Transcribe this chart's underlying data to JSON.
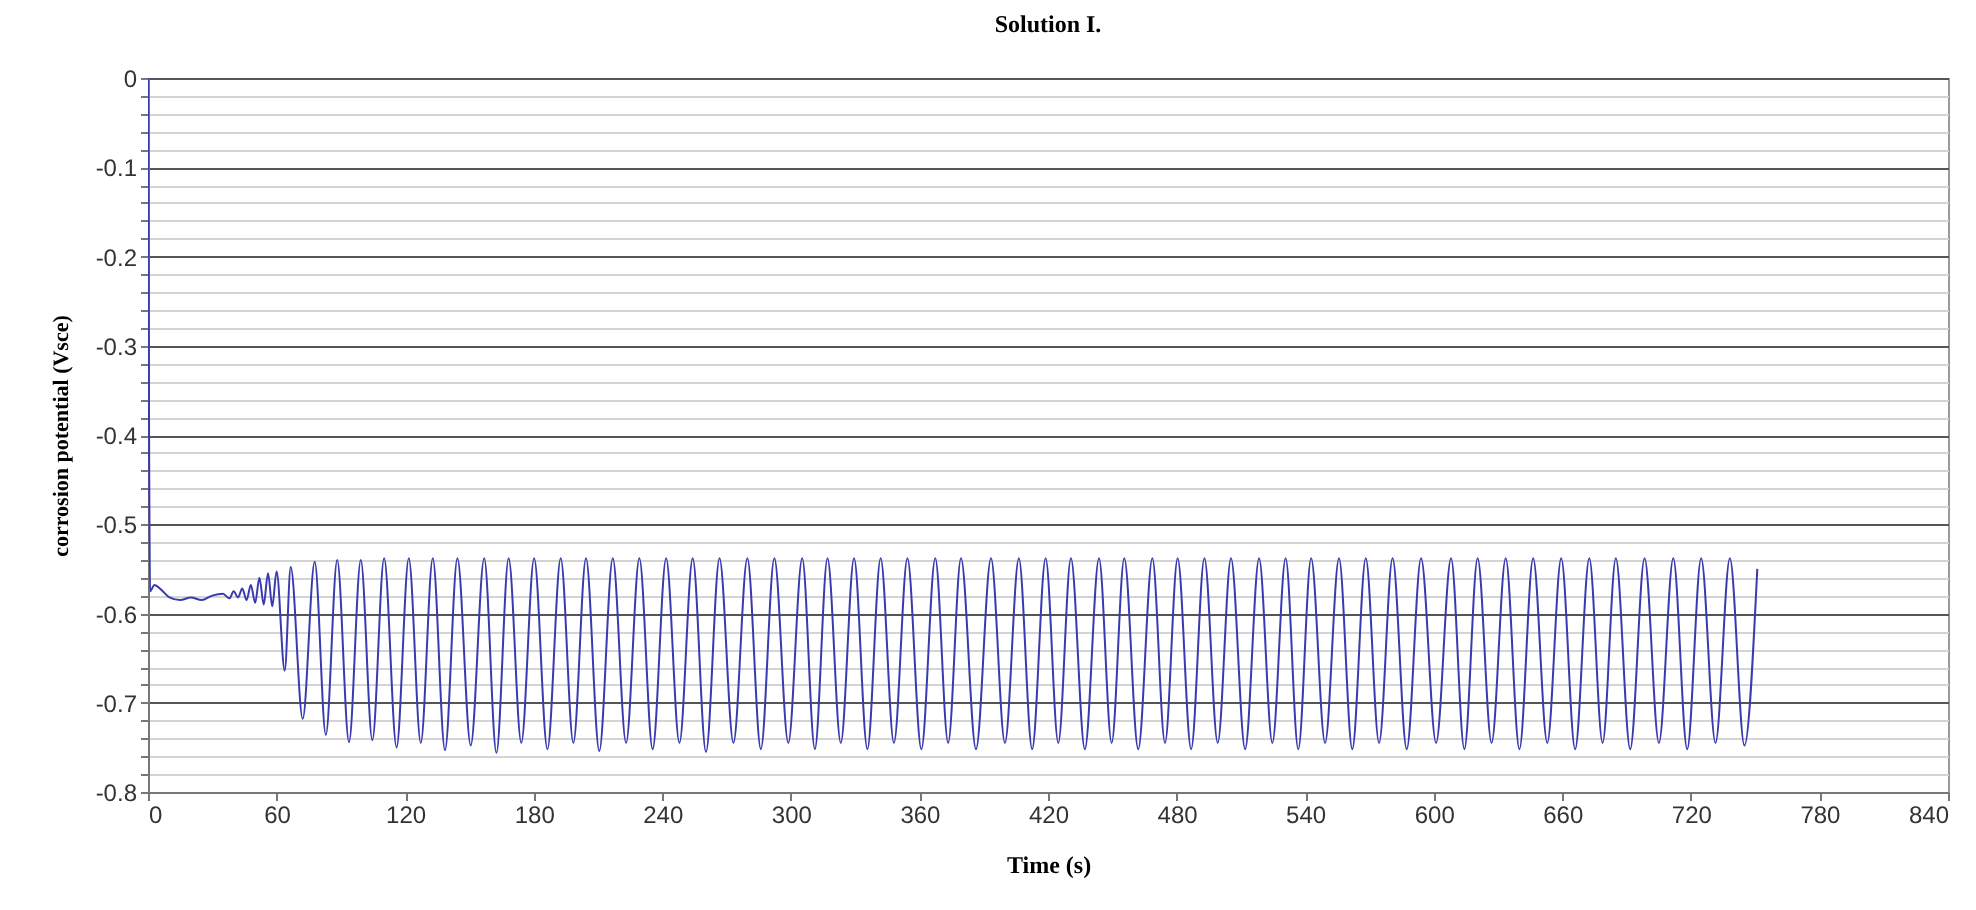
{
  "chart_data": {
    "type": "line",
    "title": "Solution  I.",
    "xlabel": "Time (s)",
    "ylabel": "corrosion potential (Vsce)",
    "color": "#3a3ab0",
    "grid": "y",
    "line_style": "solid",
    "marker": "none",
    "xlim": [
      0,
      840
    ],
    "xticks": [
      0,
      60,
      120,
      180,
      240,
      300,
      360,
      420,
      480,
      540,
      600,
      660,
      720,
      780,
      840
    ],
    "ylim": [
      -0.8,
      0
    ],
    "yticks": [
      0,
      {
        "value": -0.02,
        "label": null
      },
      {
        "value": -0.04,
        "label": null
      },
      {
        "value": -0.06,
        "label": null
      },
      {
        "value": -0.08,
        "label": null
      },
      -0.1,
      {
        "value": -0.12,
        "label": null
      },
      {
        "value": -0.14,
        "label": null
      },
      {
        "value": -0.16,
        "label": null
      },
      {
        "value": -0.18,
        "label": null
      },
      -0.2,
      {
        "value": -0.22,
        "label": null
      },
      {
        "value": -0.24,
        "label": null
      },
      {
        "value": -0.26,
        "label": null
      },
      {
        "value": -0.28,
        "label": null
      },
      -0.3,
      {
        "value": -0.32,
        "label": null
      },
      {
        "value": -0.34,
        "label": null
      },
      {
        "value": -0.36,
        "label": null
      },
      {
        "value": -0.38,
        "label": null
      },
      -0.4,
      {
        "value": -0.42,
        "label": null
      },
      {
        "value": -0.44,
        "label": null
      },
      {
        "value": -0.46,
        "label": null
      },
      {
        "value": -0.48,
        "label": null
      },
      -0.5,
      {
        "value": -0.52,
        "label": null
      },
      {
        "value": -0.54,
        "label": null
      },
      {
        "value": -0.56,
        "label": null
      },
      {
        "value": -0.58,
        "label": null
      },
      -0.6,
      {
        "value": -0.62,
        "label": null
      },
      {
        "value": -0.64,
        "label": null
      },
      {
        "value": -0.66,
        "label": null
      },
      {
        "value": -0.68,
        "label": null
      },
      -0.7,
      {
        "value": -0.72,
        "label": null
      },
      {
        "value": -0.74,
        "label": null
      },
      {
        "value": -0.76,
        "label": null
      },
      {
        "value": -0.78,
        "label": null
      },
      -0.8
    ],
    "x": [
      0,
      1,
      3,
      6,
      10,
      15,
      20,
      25,
      30,
      35,
      38,
      40,
      42,
      44,
      46,
      48,
      50,
      52,
      54,
      56,
      58,
      60,
      63.8,
      66.6,
      72.2,
      77.8,
      83,
      88.3,
      93.8,
      99.3,
      104.7,
      110.2,
      116,
      121.7,
      127.3,
      132.9,
      138.6,
      144.4,
      150.6,
      156.9,
      162.6,
      168.3,
      174.2,
      180.2,
      186.4,
      192.6,
      198.5,
      204.4,
      210.6,
      216.9,
      223.1,
      229.3,
      235.5,
      241.8,
      248,
      254.2,
      260.4,
      266.7,
      273.2,
      279.7,
      286,
      292.3,
      298.8,
      305.3,
      311.2,
      317.1,
      323.3,
      329.5,
      335.7,
      341.9,
      348.1,
      354.4,
      360.9,
      367.4,
      373.4,
      379.4,
      386.4,
      393.4,
      399.9,
      406.4,
      412.6,
      418.9,
      424.8,
      430.7,
      437.2,
      443.8,
      449.7,
      455.6,
      462.1,
      468.7,
      474.6,
      480.5,
      486.8,
      493,
      499.2,
      505.4,
      512,
      518.5,
      524.7,
      530.9,
      536.8,
      542.8,
      549.3,
      555.8,
      562,
      568.3,
      574.5,
      580.8,
      587.4,
      594.1,
      601.1,
      608.1,
      614.3,
      620.5,
      627,
      633.6,
      640,
      646.4,
      653,
      659.5,
      666,
      672.6,
      678.8,
      685,
      691.7,
      698.4,
      705.1,
      711.8,
      718.3,
      724.8,
      731.5,
      738.2,
      745,
      751
    ],
    "values": [
      0,
      -0.575,
      -0.568,
      -0.573,
      -0.582,
      -0.585,
      -0.582,
      -0.585,
      -0.58,
      -0.578,
      -0.583,
      -0.575,
      -0.582,
      -0.572,
      -0.585,
      -0.568,
      -0.588,
      -0.56,
      -0.59,
      -0.555,
      -0.592,
      -0.553,
      -0.664,
      -0.548,
      -0.718,
      -0.542,
      -0.736,
      -0.54,
      -0.744,
      -0.54,
      -0.742,
      -0.538,
      -0.75,
      -0.538,
      -0.745,
      -0.538,
      -0.753,
      -0.538,
      -0.748,
      -0.538,
      -0.756,
      -0.538,
      -0.745,
      -0.538,
      -0.752,
      -0.538,
      -0.745,
      -0.538,
      -0.754,
      -0.538,
      -0.745,
      -0.538,
      -0.752,
      -0.538,
      -0.745,
      -0.538,
      -0.755,
      -0.538,
      -0.745,
      -0.538,
      -0.752,
      -0.538,
      -0.745,
      -0.538,
      -0.752,
      -0.538,
      -0.745,
      -0.538,
      -0.752,
      -0.538,
      -0.745,
      -0.538,
      -0.752,
      -0.538,
      -0.745,
      -0.538,
      -0.752,
      -0.538,
      -0.745,
      -0.538,
      -0.752,
      -0.538,
      -0.745,
      -0.538,
      -0.752,
      -0.538,
      -0.745,
      -0.538,
      -0.752,
      -0.538,
      -0.745,
      -0.538,
      -0.752,
      -0.538,
      -0.745,
      -0.538,
      -0.752,
      -0.538,
      -0.745,
      -0.538,
      -0.752,
      -0.538,
      -0.745,
      -0.538,
      -0.752,
      -0.538,
      -0.745,
      -0.538,
      -0.752,
      -0.538,
      -0.745,
      -0.538,
      -0.752,
      -0.538,
      -0.745,
      -0.538,
      -0.752,
      -0.538,
      -0.745,
      -0.538,
      -0.752,
      -0.538,
      -0.745,
      -0.538,
      -0.752,
      -0.538,
      -0.745,
      -0.538,
      -0.752,
      -0.538,
      -0.745,
      -0.538,
      -0.748,
      -0.55
    ]
  }
}
